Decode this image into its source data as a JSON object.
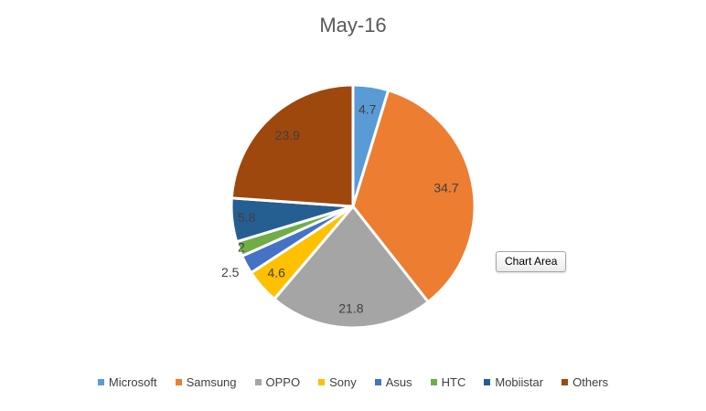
{
  "tooltip": {
    "label": "Chart Area"
  },
  "chart_data": {
    "type": "pie",
    "title": "May-16",
    "categories": [
      "Microsoft",
      "Samsung",
      "OPPO",
      "Sony",
      "Asus",
      "HTC",
      "Mobiistar",
      "Others"
    ],
    "values": [
      4.7,
      34.7,
      21.8,
      4.6,
      2.5,
      2,
      5.8,
      23.9
    ],
    "data_labels": [
      "4.7",
      "34.7",
      "21.8",
      "4.6",
      "2.5",
      "2",
      "5.8",
      "23.9"
    ],
    "colors": [
      "#5B9BD5",
      "#ED7D31",
      "#A5A5A5",
      "#FFC000",
      "#4472C4",
      "#70AD47",
      "#255E91",
      "#9E480E"
    ],
    "start_angle_deg": 0,
    "direction": "clockwise",
    "legend_position": "bottom",
    "title_color": "#595959",
    "label_color": "#404040"
  }
}
